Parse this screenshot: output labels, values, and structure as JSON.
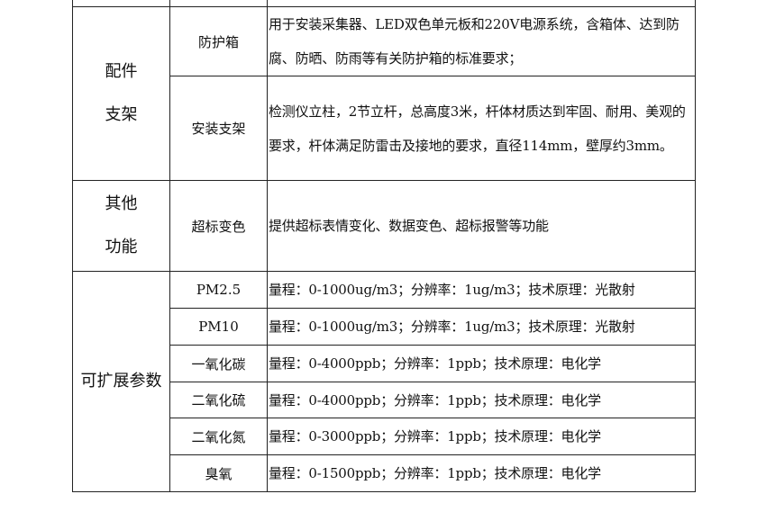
{
  "groups": [
    {
      "category_lines": [
        "配件",
        "支架"
      ],
      "items": [
        {
          "name": "防护箱",
          "desc": "用于安装采集器、LED双色单元板和220V电源系统，含箱体、达到防腐、防晒、防雨等有关防护箱的标准要求；"
        },
        {
          "name": "安装支架",
          "desc": "检测仪立柱，2节立杆，总高度3米，杆体材质达到牢固、耐用、美观的要求，杆体满足防雷击及接地的要求，直径114mm，壁厚约3mm。"
        }
      ]
    },
    {
      "category_lines": [
        "其他",
        "功能"
      ],
      "items": [
        {
          "name": "超标变色",
          "desc": "提供超标表情变化、数据变色、超标报警等功能"
        }
      ]
    },
    {
      "category_lines": [
        "可扩展参数"
      ],
      "items": [
        {
          "name": "PM2.5",
          "desc": "量程：0-1000ug/m3；分辨率：1ug/m3；技术原理：光散射"
        },
        {
          "name": "PM10",
          "desc": "量程：0-1000ug/m3；分辨率：1ug/m3；技术原理：光散射"
        },
        {
          "name": "一氧化碳",
          "desc": "量程：0-4000ppb；分辨率：1ppb；技术原理：电化学"
        },
        {
          "name": "二氧化硫",
          "desc": "量程：0-4000ppb；分辨率：1ppb；技术原理：电化学"
        },
        {
          "name": "二氧化氮",
          "desc": "量程：0-3000ppb；分辨率：1ppb；技术原理：电化学"
        },
        {
          "name": "臭氧",
          "desc": "量程：0-1500ppb；分辨率：1ppb；技术原理：电化学"
        }
      ]
    }
  ]
}
